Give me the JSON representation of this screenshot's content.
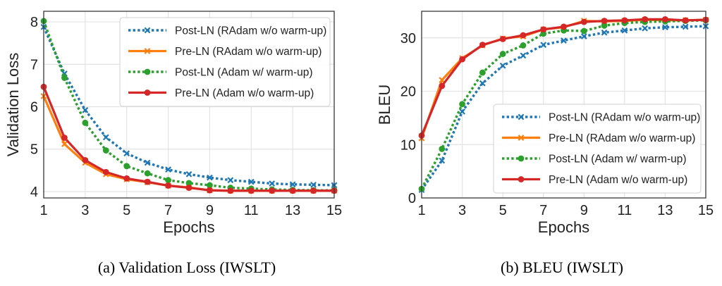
{
  "charts": [
    {
      "type": "line",
      "title": "",
      "xlabel": "Epochs",
      "ylabel": "Validation Loss",
      "xlim": [
        1,
        15
      ],
      "ylim": [
        3.85,
        8.25
      ],
      "xticks": [
        1,
        3,
        5,
        7,
        9,
        11,
        13,
        15
      ],
      "yticks": [
        4,
        5,
        6,
        7,
        8
      ],
      "grid": true,
      "legend_position": "top-right",
      "caption": "(a)  Validation Loss (IWSLT)"
    },
    {
      "type": "line",
      "title": "",
      "xlabel": "Epochs",
      "ylabel": "BLEU",
      "xlim": [
        1,
        15
      ],
      "ylim": [
        0,
        35
      ],
      "xticks": [
        1,
        3,
        5,
        7,
        9,
        11,
        13,
        15
      ],
      "yticks": [
        0,
        10,
        20,
        30
      ],
      "grid": true,
      "legend_position": "bottom-right",
      "caption": "(b)  BLEU (IWSLT)"
    }
  ],
  "chart_data": [
    {
      "type": "line",
      "title": "",
      "xlabel": "Epochs",
      "ylabel": "Validation Loss",
      "xlim": [
        1,
        15
      ],
      "ylim": [
        3.85,
        8.25
      ],
      "grid": true,
      "legend_position": "top-right",
      "x": [
        1,
        2,
        3,
        4,
        5,
        6,
        7,
        8,
        9,
        10,
        11,
        12,
        13,
        14,
        15
      ],
      "series": [
        {
          "name": "Post-LN (RAdam w/o warm-up)",
          "color": "#1f77b4",
          "style": "dotted",
          "marker": "x",
          "values": [
            7.88,
            6.78,
            5.92,
            5.28,
            4.9,
            4.68,
            4.52,
            4.41,
            4.33,
            4.27,
            4.23,
            4.19,
            4.17,
            4.16,
            4.15
          ]
        },
        {
          "name": "Pre-LN (RAdam w/o warm-up)",
          "color": "#ff7f0e",
          "style": "solid",
          "marker": "x",
          "values": [
            6.25,
            5.12,
            4.68,
            4.41,
            4.29,
            4.22,
            4.14,
            4.1,
            4.03,
            4.02,
            4.02,
            4.02,
            4.02,
            4.02,
            4.02
          ]
        },
        {
          "name": "Post-LN (Adam w/ warm-up)",
          "color": "#2ca02c",
          "style": "dotted",
          "marker": "o",
          "values": [
            8.02,
            6.68,
            5.62,
            4.97,
            4.6,
            4.43,
            4.27,
            4.2,
            4.15,
            4.09,
            4.07,
            4.05,
            4.04,
            4.03,
            4.03
          ]
        },
        {
          "name": "Pre-LN (Adam w/o warm-up)",
          "color": "#d62728",
          "style": "solid",
          "marker": "o",
          "values": [
            6.47,
            5.27,
            4.74,
            4.46,
            4.31,
            4.23,
            4.14,
            4.09,
            4.03,
            4.02,
            4.02,
            4.02,
            4.02,
            4.02,
            4.02
          ]
        }
      ]
    },
    {
      "type": "line",
      "title": "",
      "xlabel": "Epochs",
      "ylabel": "BLEU",
      "xlim": [
        1,
        15
      ],
      "ylim": [
        0,
        35
      ],
      "grid": true,
      "legend_position": "bottom-right",
      "x": [
        1,
        2,
        3,
        4,
        5,
        6,
        7,
        8,
        9,
        10,
        11,
        12,
        13,
        14,
        15
      ],
      "series": [
        {
          "name": "Post-LN (RAdam w/o warm-up)",
          "color": "#1f77b4",
          "style": "dotted",
          "marker": "x",
          "values": [
            1.5,
            7.0,
            16.2,
            21.5,
            24.8,
            26.7,
            28.7,
            29.5,
            30.3,
            31.0,
            31.4,
            31.8,
            32.0,
            32.1,
            32.2
          ]
        },
        {
          "name": "Pre-LN (RAdam w/o warm-up)",
          "color": "#ff7f0e",
          "style": "solid",
          "marker": "x",
          "values": [
            11.2,
            22.1,
            26.2,
            28.6,
            29.9,
            30.3,
            31.6,
            32.0,
            33.2,
            33.1,
            33.2,
            33.4,
            33.3,
            33.3,
            33.4
          ]
        },
        {
          "name": "Post-LN (Adam w/ warm-up)",
          "color": "#2ca02c",
          "style": "dotted",
          "marker": "o",
          "values": [
            1.7,
            9.2,
            17.6,
            23.5,
            27.0,
            28.6,
            30.8,
            31.4,
            31.3,
            32.3,
            32.8,
            33.0,
            33.1,
            33.2,
            33.3
          ]
        },
        {
          "name": "Pre-LN (Adam w/o warm-up)",
          "color": "#d62728",
          "style": "solid",
          "marker": "o",
          "values": [
            11.7,
            21.0,
            26.0,
            28.7,
            29.8,
            30.5,
            31.6,
            32.1,
            33.0,
            33.2,
            33.3,
            33.5,
            33.5,
            33.3,
            33.4
          ]
        }
      ]
    }
  ]
}
